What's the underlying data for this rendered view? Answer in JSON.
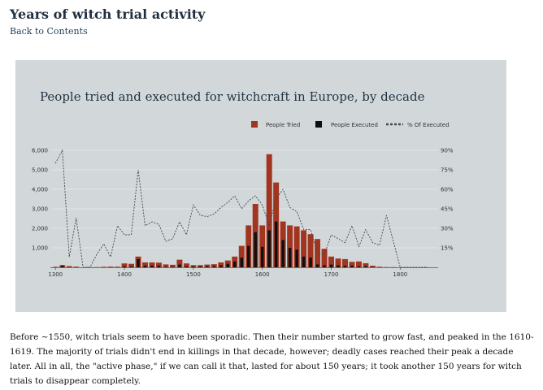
{
  "page": {
    "title": "Years of witch trial activity",
    "back_link": "Back to Contents",
    "paragraph": "Before ~1550, witch trials seem to have been sporadic. Then their number started to grow fast, and peaked in the 1610-1619. The majority of trials didn't end in killings in that decade, however; deadly cases reached their peak a decade later. All in all, the \"active phase,\" if we can call it that, lasted for about 150 years; it took another 150 years for witch trials to disappear completely."
  },
  "colors": {
    "tried": "#a2351f",
    "executed": "#0f0f0f",
    "pct_line": "#3a4a4a",
    "panel": "#d2d7da"
  },
  "chart_data": {
    "type": "bar",
    "title": "People tried and executed for witchcraft in Europe, by decade",
    "legend_position": "top-right",
    "legend": [
      "People Tried",
      "People Executed",
      "% Of Executed"
    ],
    "x_ticks": [
      "1300",
      "1400",
      "1500",
      "1600",
      "1700",
      "1800"
    ],
    "y_ticks": [
      "1,000",
      "2,000",
      "3,000",
      "4,000",
      "5,000",
      "6,000"
    ],
    "y2_ticks": [
      "15%",
      "30%",
      "45%",
      "60%",
      "75%",
      "90%"
    ],
    "xlim": [
      1295,
      1855
    ],
    "ylim": [
      0,
      6000
    ],
    "y2lim": [
      0,
      90
    ],
    "grid": true,
    "decades": [
      1300,
      1310,
      1320,
      1330,
      1340,
      1350,
      1360,
      1370,
      1380,
      1390,
      1400,
      1410,
      1420,
      1430,
      1440,
      1450,
      1460,
      1470,
      1480,
      1490,
      1500,
      1510,
      1520,
      1530,
      1540,
      1550,
      1560,
      1570,
      1580,
      1590,
      1600,
      1610,
      1620,
      1630,
      1640,
      1650,
      1660,
      1670,
      1680,
      1690,
      1700,
      1710,
      1720,
      1730,
      1740,
      1750,
      1760,
      1770,
      1780,
      1790,
      1800,
      1810,
      1820,
      1830,
      1840
    ],
    "series": [
      {
        "name": "People Tried",
        "values": [
          20,
          110,
          60,
          30,
          0,
          10,
          10,
          25,
          35,
          30,
          200,
          180,
          550,
          250,
          250,
          240,
          150,
          130,
          390,
          200,
          110,
          110,
          140,
          160,
          250,
          350,
          550,
          1100,
          2150,
          3250,
          2150,
          5800,
          4350,
          2350,
          2150,
          2100,
          1900,
          1700,
          1450,
          950,
          550,
          450,
          420,
          280,
          300,
          210,
          80,
          30,
          10,
          10,
          0,
          0,
          0,
          0,
          0
        ]
      },
      {
        "name": "People Executed",
        "values": [
          15,
          100,
          5,
          12,
          0,
          0,
          2,
          5,
          2,
          9,
          50,
          45,
          420,
          85,
          88,
          80,
          30,
          28,
          140,
          50,
          45,
          45,
          55,
          65,
          100,
          180,
          300,
          500,
          1100,
          1800,
          1050,
          1900,
          2350,
          1400,
          1000,
          900,
          550,
          500,
          150,
          100,
          140,
          100,
          80,
          90,
          50,
          60,
          15,
          5,
          4,
          2,
          0,
          0,
          0,
          0,
          0
        ]
      },
      {
        "name": "% Of Executed",
        "values": [
          80,
          90,
          8,
          38,
          0,
          0,
          10,
          18,
          8,
          32,
          25,
          25,
          75,
          32,
          35,
          33,
          20,
          22,
          35,
          25,
          48,
          40,
          39,
          41,
          46,
          50,
          55,
          45,
          51,
          55,
          48,
          32,
          53,
          60,
          46,
          43,
          29,
          29,
          10,
          10,
          25,
          22,
          19,
          32,
          16,
          29,
          19,
          17,
          40,
          20,
          0,
          0,
          0,
          0,
          0
        ]
      }
    ]
  }
}
